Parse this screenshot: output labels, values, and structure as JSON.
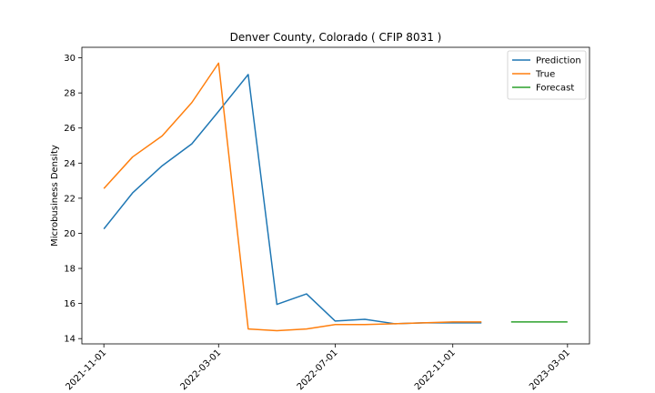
{
  "chart_data": {
    "type": "line",
    "title": "Denver County, Colorado ( CFIP 8031 )",
    "xlabel": "",
    "ylabel": "Microbusiness Density",
    "x_axis_type": "date",
    "xlim": [
      "2021-10-09",
      "2023-03-24"
    ],
    "ylim": [
      13.7,
      30.6
    ],
    "x_ticks": [
      "2021-11-01",
      "2022-03-01",
      "2022-07-01",
      "2022-11-01",
      "2023-03-01"
    ],
    "y_ticks": [
      14,
      16,
      18,
      20,
      22,
      24,
      26,
      28,
      30
    ],
    "grid": false,
    "legend_position": "upper right",
    "series": [
      {
        "name": "Prediction",
        "color": "#1f77b4",
        "x": [
          "2021-11-01",
          "2021-12-01",
          "2022-01-01",
          "2022-02-01",
          "2022-03-01",
          "2022-04-01",
          "2022-05-01",
          "2022-06-01",
          "2022-07-01",
          "2022-08-01",
          "2022-09-01",
          "2022-10-01",
          "2022-11-01",
          "2022-12-01"
        ],
        "y": [
          20.25,
          22.3,
          23.85,
          25.1,
          26.95,
          29.05,
          15.95,
          16.55,
          15.0,
          15.1,
          14.85,
          14.9,
          14.9,
          14.9
        ]
      },
      {
        "name": "True",
        "color": "#ff7f0e",
        "x": [
          "2021-11-01",
          "2021-12-01",
          "2022-01-01",
          "2022-02-01",
          "2022-03-01",
          "2022-04-01",
          "2022-05-01",
          "2022-06-01",
          "2022-07-01",
          "2022-08-01",
          "2022-09-01",
          "2022-10-01",
          "2022-11-01",
          "2022-12-01"
        ],
        "y": [
          22.55,
          24.35,
          25.55,
          27.45,
          29.7,
          14.55,
          14.45,
          14.55,
          14.8,
          14.8,
          14.85,
          14.9,
          14.95,
          14.95
        ]
      },
      {
        "name": "Forecast",
        "color": "#2ca02c",
        "x": [
          "2023-01-01",
          "2023-02-01",
          "2023-03-01"
        ],
        "y": [
          14.95,
          14.95,
          14.95
        ]
      }
    ]
  }
}
